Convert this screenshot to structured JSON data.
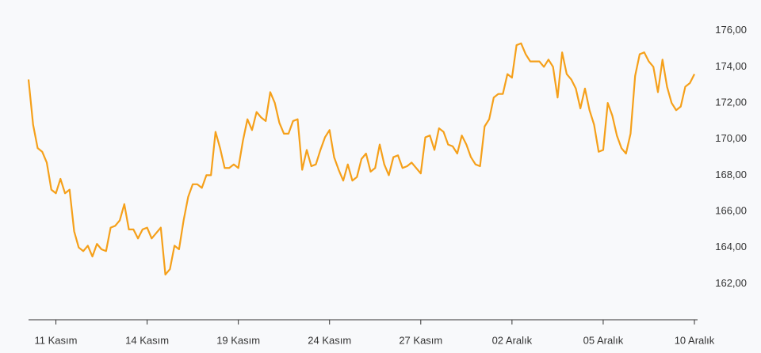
{
  "chart_data": {
    "type": "line",
    "categories": [
      null,
      null,
      null,
      null,
      null,
      null,
      "11 Kasım",
      null,
      null,
      null,
      null,
      null,
      null,
      null,
      null,
      null,
      null,
      null,
      null,
      null,
      null,
      null,
      null,
      null,
      null,
      null,
      "14 Kasım",
      null,
      null,
      null,
      null,
      null,
      null,
      null,
      null,
      null,
      null,
      null,
      null,
      null,
      null,
      null,
      null,
      null,
      null,
      null,
      "19 Kasım",
      null,
      null,
      null,
      null,
      null,
      null,
      null,
      null,
      null,
      null,
      null,
      null,
      null,
      null,
      null,
      null,
      null,
      null,
      null,
      "24 Kasım",
      null,
      null,
      null,
      null,
      null,
      null,
      null,
      null,
      null,
      null,
      null,
      null,
      null,
      null,
      null,
      null,
      null,
      null,
      null,
      "27 Kasım",
      null,
      null,
      null,
      null,
      null,
      null,
      null,
      null,
      null,
      null,
      null,
      null,
      null,
      null,
      null,
      null,
      null,
      null,
      null,
      "02 Aralık",
      null,
      null,
      null,
      null,
      null,
      null,
      null,
      null,
      null,
      null,
      null,
      null,
      null,
      null,
      null,
      null,
      null,
      null,
      null,
      "05 Aralık",
      null,
      null,
      null,
      null,
      null,
      null,
      null,
      null,
      null,
      null,
      null,
      null,
      null,
      null,
      null,
      null,
      null,
      null,
      null,
      "10 Aralık"
    ],
    "values": [
      173.3,
      170.8,
      169.5,
      169.3,
      168.7,
      167.2,
      167.0,
      167.8,
      167.0,
      167.2,
      164.9,
      164.0,
      163.8,
      164.1,
      163.5,
      164.2,
      163.9,
      163.8,
      165.1,
      165.2,
      165.5,
      166.4,
      165.0,
      165.0,
      164.5,
      165.0,
      165.1,
      164.5,
      164.8,
      165.1,
      162.5,
      162.8,
      164.1,
      163.9,
      165.5,
      166.8,
      167.5,
      167.5,
      167.3,
      168.0,
      168.0,
      170.4,
      169.5,
      168.4,
      168.4,
      168.6,
      168.4,
      169.9,
      171.1,
      170.5,
      171.5,
      171.2,
      171.0,
      172.6,
      172.0,
      170.9,
      170.3,
      170.3,
      171.0,
      171.1,
      168.3,
      169.4,
      168.5,
      168.6,
      169.4,
      170.1,
      170.5,
      169.0,
      168.3,
      167.7,
      168.6,
      167.7,
      167.9,
      168.9,
      169.2,
      168.2,
      168.4,
      169.7,
      168.6,
      168.0,
      169.0,
      169.1,
      168.4,
      168.5,
      168.7,
      168.4,
      168.1,
      170.1,
      170.2,
      169.4,
      170.6,
      170.4,
      169.7,
      169.6,
      169.2,
      170.2,
      169.7,
      169.0,
      168.6,
      168.5,
      170.7,
      171.1,
      172.3,
      172.5,
      172.5,
      173.6,
      173.4,
      175.2,
      175.3,
      174.7,
      174.3,
      174.3,
      174.3,
      174.0,
      174.4,
      174.0,
      172.3,
      174.8,
      173.6,
      173.3,
      172.8,
      171.7,
      172.8,
      171.6,
      170.8,
      169.3,
      169.4,
      172.0,
      171.3,
      170.2,
      169.5,
      169.2,
      170.3,
      173.5,
      174.7,
      174.8,
      174.3,
      174.0,
      172.6,
      174.4,
      172.9,
      172.0,
      171.6,
      171.8,
      172.9,
      173.1,
      173.6
    ],
    "color": "#f5a01a",
    "ylim": [
      160,
      177.7
    ],
    "yticks": [
      {
        "value": 162,
        "label": "162,00"
      },
      {
        "value": 164,
        "label": "164,00"
      },
      {
        "value": 166,
        "label": "166,00"
      },
      {
        "value": 168,
        "label": "168,00"
      },
      {
        "value": 170,
        "label": "170,00"
      },
      {
        "value": 172,
        "label": "172,00"
      },
      {
        "value": 174,
        "label": "174,00"
      },
      {
        "value": 176,
        "label": "176,00"
      }
    ]
  }
}
